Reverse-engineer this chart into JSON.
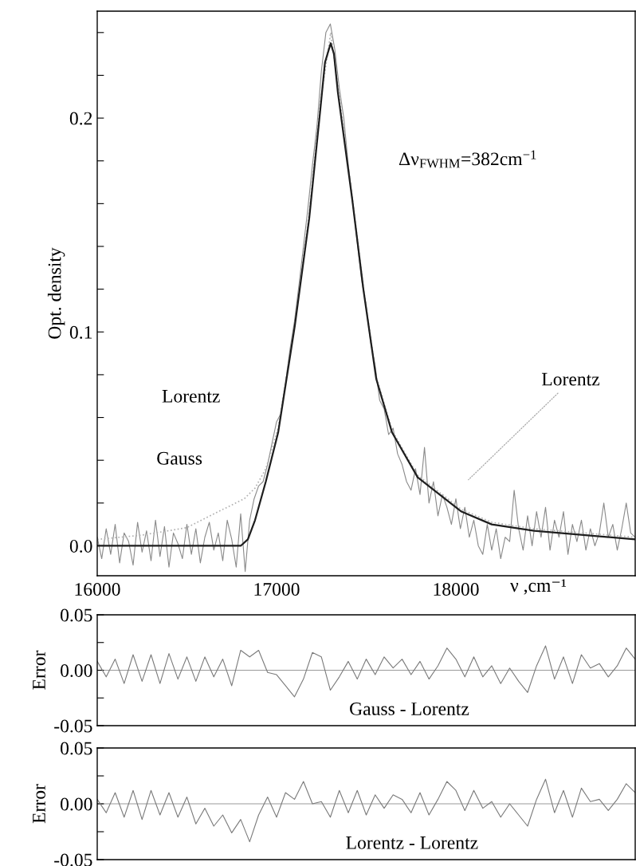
{
  "chart_data": [
    {
      "type": "line",
      "ylabel": "Opt. density",
      "xlabel": "ν ,cm⁻¹",
      "xlim": [
        16000,
        19000
      ],
      "xticks": [
        16000,
        17000,
        18000
      ],
      "ylim": [
        -0.014,
        0.25
      ],
      "yticks": [
        {
          "value": 0,
          "label": "0.0"
        },
        {
          "value": 0.02,
          "label": null
        },
        {
          "value": 0.04,
          "label": null
        },
        {
          "value": 0.06,
          "label": null
        },
        {
          "value": 0.08,
          "label": null
        },
        {
          "value": 0.1,
          "label": "0.1"
        },
        {
          "value": 0.12,
          "label": null
        },
        {
          "value": 0.14,
          "label": null
        },
        {
          "value": 0.16,
          "label": null
        },
        {
          "value": 0.18,
          "label": null
        },
        {
          "value": 0.2,
          "label": "0.2"
        },
        {
          "value": 0.22,
          "label": null
        },
        {
          "value": 0.24,
          "label": null
        }
      ],
      "grid": false,
      "legend": false,
      "annotations": [
        "Lorentz",
        "Gauss",
        "Δν$_{FWHM}$=382cm$^{−1}$",
        "Lorentz"
      ],
      "series": [
        {
          "color": "#8a8a8a",
          "line_style": "solid",
          "x": [
            16000,
            16025,
            16050,
            16075,
            16100,
            16125,
            16150,
            16175,
            16200,
            16225,
            16250,
            16275,
            16300,
            16325,
            16350,
            16375,
            16400,
            16425,
            16450,
            16475,
            16500,
            16525,
            16550,
            16575,
            16600,
            16625,
            16650,
            16675,
            16700,
            16725,
            16750,
            16775,
            16800,
            16825,
            16850,
            16875,
            16900,
            16925,
            16950,
            16975,
            17000,
            17025,
            17050,
            17075,
            17100,
            17125,
            17150,
            17175,
            17200,
            17225,
            17250,
            17275,
            17300,
            17325,
            17350,
            17375,
            17400,
            17425,
            17450,
            17475,
            17500,
            17525,
            17550,
            17575,
            17600,
            17625,
            17650,
            17675,
            17700,
            17725,
            17750,
            17775,
            17800,
            17825,
            17850,
            17875,
            17900,
            17925,
            17950,
            17975,
            18000,
            18025,
            18050,
            18075,
            18100,
            18125,
            18150,
            18175,
            18200,
            18225,
            18250,
            18275,
            18300,
            18325,
            18350,
            18375,
            18400,
            18425,
            18450,
            18475,
            18500,
            18525,
            18550,
            18575,
            18600,
            18625,
            18650,
            18675,
            18700,
            18725,
            18750,
            18775,
            18800,
            18825,
            18850,
            18875,
            18900,
            18925,
            18950,
            18975,
            19000
          ],
          "values": [
            0.004,
            -0.006,
            0.008,
            -0.004,
            0.01,
            -0.008,
            0.006,
            0.002,
            -0.009,
            0.011,
            -0.003,
            0.007,
            -0.007,
            0.012,
            -0.005,
            0.009,
            -0.01,
            0.006,
            0.001,
            -0.006,
            0.01,
            -0.004,
            0.008,
            -0.008,
            0.004,
            0.011,
            -0.002,
            0.006,
            -0.007,
            0.012,
            0.003,
            -0.01,
            0.015,
            -0.012,
            0.012,
            0.022,
            0.028,
            0.03,
            0.038,
            0.048,
            0.058,
            0.062,
            0.076,
            0.092,
            0.105,
            0.122,
            0.14,
            0.158,
            0.178,
            0.196,
            0.222,
            0.24,
            0.244,
            0.232,
            0.214,
            0.2,
            0.178,
            0.16,
            0.142,
            0.124,
            0.112,
            0.095,
            0.084,
            0.068,
            0.064,
            0.052,
            0.055,
            0.043,
            0.038,
            0.03,
            0.026,
            0.036,
            0.024,
            0.046,
            0.02,
            0.03,
            0.014,
            0.024,
            0.018,
            0.01,
            0.022,
            0.008,
            0.018,
            0.004,
            0.012,
            0.0,
            -0.004,
            0.01,
            -0.002,
            0.008,
            -0.006,
            0.004,
            0.002,
            0.026,
            0.008,
            -0.002,
            0.014,
            0.0,
            0.016,
            0.004,
            0.018,
            -0.002,
            0.012,
            0.004,
            0.016,
            -0.004,
            0.01,
            0.002,
            0.012,
            -0.002,
            0.008,
            0.0,
            0.006,
            0.02,
            0.004,
            0.01,
            -0.002,
            0.008,
            0.02,
            0.006,
            0.004
          ]
        },
        {
          "color": "#b0b0b0",
          "line_style": "dotted",
          "x": [
            16000,
            16250,
            16500,
            16700,
            16820,
            16880,
            16940,
            17009,
            17102,
            17182,
            17244,
            17302,
            17342,
            17422,
            17484,
            17556,
            17644,
            17787,
            18031,
            18200,
            18436,
            19000
          ],
          "values": [
            0.003,
            0.005,
            0.0085,
            0.017,
            0.022,
            0.027,
            0.036,
            0.055,
            0.104,
            0.155,
            0.207,
            0.24,
            0.215,
            0.163,
            0.121,
            0.079,
            0.054,
            0.033,
            0.017,
            0.011,
            0.008,
            0.004
          ]
        },
        {
          "color": "#1e1e1e",
          "line_style": "solid",
          "x": [
            16000,
            16800,
            16840,
            16880,
            16940,
            17009,
            17102,
            17182,
            17244,
            17270,
            17302,
            17320,
            17342,
            17422,
            17484,
            17556,
            17644,
            17787,
            18031,
            18200,
            18436,
            19000
          ],
          "values": [
            0,
            0,
            0.003,
            0.012,
            0.03,
            0.053,
            0.103,
            0.153,
            0.204,
            0.226,
            0.235,
            0.23,
            0.212,
            0.162,
            0.12,
            0.078,
            0.053,
            0.032,
            0.016,
            0.01,
            0.007,
            0.003
          ]
        }
      ]
    },
    {
      "type": "line",
      "ylabel": "Error",
      "xlim": [
        16000,
        19000
      ],
      "ylim": [
        -0.05,
        0.05
      ],
      "yticks": [
        {
          "value": -0.05,
          "label": "-0.05"
        },
        {
          "value": -0.025,
          "label": null
        },
        {
          "value": 0,
          "label": "0.00"
        },
        {
          "value": 0.025,
          "label": null
        },
        {
          "value": 0.05,
          "label": "0.05"
        }
      ],
      "tick_labels": "y",
      "grid": false,
      "legend": false,
      "ref_lines": [
        {
          "axis": "y",
          "value": 0,
          "color": "#9a9a9a"
        }
      ],
      "annotations": [
        "Gauss - Lorentz"
      ],
      "series": [
        {
          "color": "#7a7a7a",
          "line_style": "solid",
          "x": [
            16000,
            16050,
            16100,
            16150,
            16200,
            16250,
            16300,
            16350,
            16400,
            16450,
            16500,
            16550,
            16600,
            16650,
            16700,
            16750,
            16800,
            16850,
            16900,
            16950,
            17000,
            17050,
            17100,
            17150,
            17200,
            17250,
            17300,
            17350,
            17400,
            17450,
            17500,
            17550,
            17600,
            17650,
            17700,
            17750,
            17800,
            17850,
            17900,
            17950,
            18000,
            18050,
            18100,
            18150,
            18200,
            18250,
            18300,
            18350,
            18400,
            18450,
            18500,
            18550,
            18600,
            18650,
            18700,
            18750,
            18800,
            18850,
            18900,
            18950,
            19000
          ],
          "values": [
            0.008,
            -0.006,
            0.01,
            -0.012,
            0.014,
            -0.01,
            0.014,
            -0.012,
            0.015,
            -0.008,
            0.012,
            -0.01,
            0.012,
            -0.006,
            0.01,
            -0.014,
            0.018,
            0.012,
            0.018,
            -0.002,
            -0.004,
            -0.014,
            -0.024,
            -0.008,
            0.016,
            0.012,
            -0.018,
            -0.006,
            0.008,
            -0.008,
            0.01,
            -0.004,
            0.012,
            0.002,
            0.01,
            -0.004,
            0.008,
            -0.008,
            0.004,
            0.02,
            0.01,
            -0.006,
            0.012,
            -0.006,
            0.004,
            -0.012,
            0.002,
            -0.01,
            -0.02,
            0.004,
            0.022,
            -0.008,
            0.012,
            -0.012,
            0.014,
            0.002,
            0.006,
            -0.006,
            0.004,
            0.02,
            0.01
          ]
        }
      ]
    },
    {
      "type": "line",
      "ylabel": "Error",
      "xlim": [
        16000,
        19000
      ],
      "ylim": [
        -0.05,
        0.05
      ],
      "yticks": [
        {
          "value": -0.05,
          "label": "-0.05"
        },
        {
          "value": -0.025,
          "label": null
        },
        {
          "value": 0,
          "label": "0.00"
        },
        {
          "value": 0.025,
          "label": null
        },
        {
          "value": 0.05,
          "label": "0.05"
        }
      ],
      "tick_labels": "y",
      "grid": false,
      "legend": false,
      "ref_lines": [
        {
          "axis": "y",
          "value": 0,
          "color": "#9a9a9a"
        }
      ],
      "annotations": [
        "Lorentz - Lorentz"
      ],
      "series": [
        {
          "color": "#7a7a7a",
          "line_style": "solid",
          "x": [
            16000,
            16050,
            16100,
            16150,
            16200,
            16250,
            16300,
            16350,
            16400,
            16450,
            16500,
            16550,
            16600,
            16650,
            16700,
            16750,
            16800,
            16850,
            16900,
            16950,
            17000,
            17050,
            17100,
            17150,
            17200,
            17250,
            17300,
            17350,
            17400,
            17450,
            17500,
            17550,
            17600,
            17650,
            17700,
            17750,
            17800,
            17850,
            17900,
            17950,
            18000,
            18050,
            18100,
            18150,
            18200,
            18250,
            18300,
            18350,
            18400,
            18450,
            18500,
            18550,
            18600,
            18650,
            18700,
            18750,
            18800,
            18850,
            18900,
            18950,
            19000
          ],
          "values": [
            0.004,
            -0.008,
            0.01,
            -0.012,
            0.012,
            -0.014,
            0.012,
            -0.01,
            0.01,
            -0.012,
            0.006,
            -0.018,
            -0.004,
            -0.02,
            -0.01,
            -0.026,
            -0.014,
            -0.034,
            -0.01,
            0.006,
            -0.012,
            0.01,
            0.004,
            0.02,
            0.0,
            0.002,
            -0.012,
            0.012,
            -0.008,
            0.012,
            -0.01,
            0.008,
            -0.004,
            0.008,
            0.004,
            -0.008,
            0.01,
            -0.01,
            0.004,
            0.02,
            0.012,
            -0.006,
            0.012,
            -0.004,
            0.002,
            -0.012,
            0.0,
            -0.01,
            -0.02,
            0.004,
            0.022,
            -0.008,
            0.012,
            -0.012,
            0.014,
            0.002,
            0.004,
            -0.006,
            0.004,
            0.018,
            0.01
          ]
        }
      ]
    }
  ]
}
